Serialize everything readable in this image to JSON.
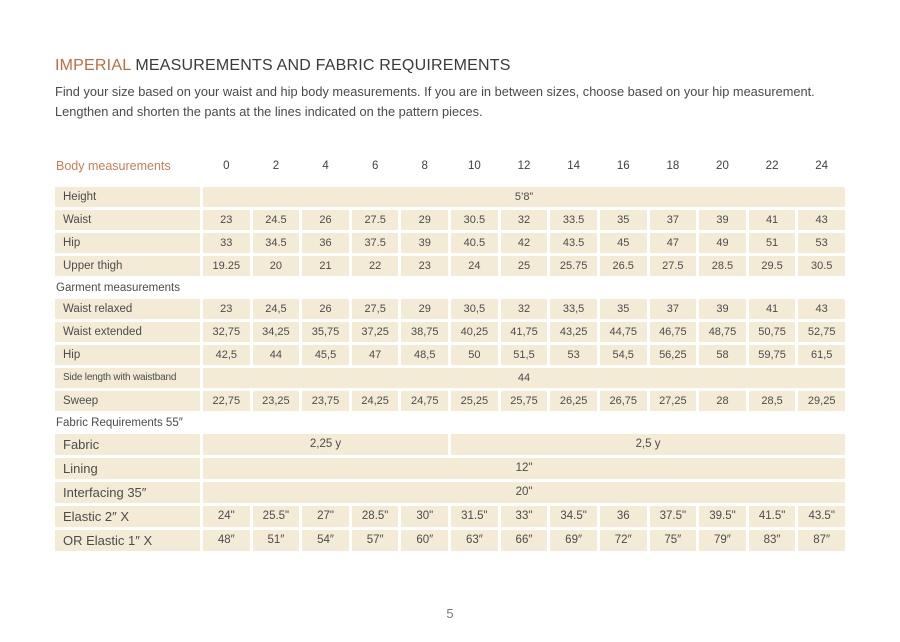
{
  "page": {
    "title_highlight": "IMPERIAL",
    "title_rest": " MEASUREMENTS AND FABRIC REQUIREMENTS",
    "intro": "Find your size based on your waist and hip body measurements. If you are in between sizes, choose based on your hip measurement. Lengthen and shorten the pants at the lines indicated on the pattern pieces.",
    "page_number": "5"
  },
  "colors": {
    "accent": "#c06b3e",
    "accent_soft": "#c77e55",
    "cell_bg": "#f4ebd7",
    "text": "#454545"
  },
  "table": {
    "header": {
      "label": "Body measurements",
      "sizes": [
        "0",
        "2",
        "4",
        "6",
        "8",
        "10",
        "12",
        "14",
        "16",
        "18",
        "20",
        "22",
        "24"
      ]
    },
    "rows": [
      {
        "type": "merged",
        "group": "body",
        "label": "Height",
        "value": "5’8”"
      },
      {
        "type": "cells",
        "group": "body",
        "label": "Waist",
        "values": [
          "23",
          "24.5",
          "26",
          "27.5",
          "29",
          "30.5",
          "32",
          "33.5",
          "35",
          "37",
          "39",
          "41",
          "43"
        ]
      },
      {
        "type": "cells",
        "group": "body",
        "label": "Hip",
        "values": [
          "33",
          "34.5",
          "36",
          "37.5",
          "39",
          "40.5",
          "42",
          "43.5",
          "45",
          "47",
          "49",
          "51",
          "53"
        ]
      },
      {
        "type": "cells",
        "group": "body",
        "label": "Upper thigh",
        "values": [
          "19.25",
          "20",
          "21",
          "22",
          "23",
          "24",
          "25",
          "25.75",
          "26.5",
          "27.5",
          "28.5",
          "29.5",
          "30.5"
        ]
      },
      {
        "type": "section",
        "label": "Garment measurements"
      },
      {
        "type": "cells",
        "group": "garment",
        "label": "Waist relaxed",
        "values": [
          "23",
          "24,5",
          "26",
          "27,5",
          "29",
          "30,5",
          "32",
          "33,5",
          "35",
          "37",
          "39",
          "41",
          "43"
        ]
      },
      {
        "type": "cells",
        "group": "garment",
        "label": "Waist extended",
        "values": [
          "32,75",
          "34,25",
          "35,75",
          "37,25",
          "38,75",
          "40,25",
          "41,75",
          "43,25",
          "44,75",
          "46,75",
          "48,75",
          "50,75",
          "52,75"
        ]
      },
      {
        "type": "cells",
        "group": "garment",
        "label": "Hip",
        "values": [
          "42,5",
          "44",
          "45,5",
          "47",
          "48,5",
          "50",
          "51,5",
          "53",
          "54,5",
          "56,25",
          "58",
          "59,75",
          "61,5"
        ]
      },
      {
        "type": "merged",
        "group": "garment",
        "label": "Side length with waistband",
        "value": "44"
      },
      {
        "type": "cells",
        "group": "garment",
        "label": "Sweep",
        "values": [
          "22,75",
          "23,25",
          "23,75",
          "24,25",
          "24,75",
          "25,25",
          "25,75",
          "26,25",
          "26,75",
          "27,25",
          "28",
          "28,5",
          "29,25"
        ]
      },
      {
        "type": "section",
        "label": "Fabric Requirements 55″"
      },
      {
        "type": "spans",
        "group": "fabric",
        "label": "Fabric",
        "spans": [
          {
            "cols": 5,
            "value": "2,25 y"
          },
          {
            "cols": 8,
            "value": "2,5 y"
          }
        ]
      },
      {
        "type": "merged",
        "group": "fabric",
        "label": "Lining",
        "value": "12\""
      },
      {
        "type": "merged",
        "group": "fabric",
        "label": "Interfacing 35″",
        "value": "20\""
      },
      {
        "type": "cells",
        "group": "fabric",
        "label": "Elastic 2″ X",
        "values": [
          "24\"",
          "25.5\"",
          "27\"",
          "28.5\"",
          "30\"",
          "31.5\"",
          "33\"",
          "34.5\"",
          "36",
          "37.5\"",
          "39.5\"",
          "41.5\"",
          "43.5\""
        ]
      },
      {
        "type": "cells",
        "group": "fabric",
        "label": "OR Elastic 1″  X",
        "values": [
          "48″",
          "51″",
          "54″",
          "57″",
          "60″",
          "63″",
          "66″",
          "69″",
          "72″",
          "75″",
          "79″",
          "83″",
          "87″"
        ]
      }
    ]
  }
}
